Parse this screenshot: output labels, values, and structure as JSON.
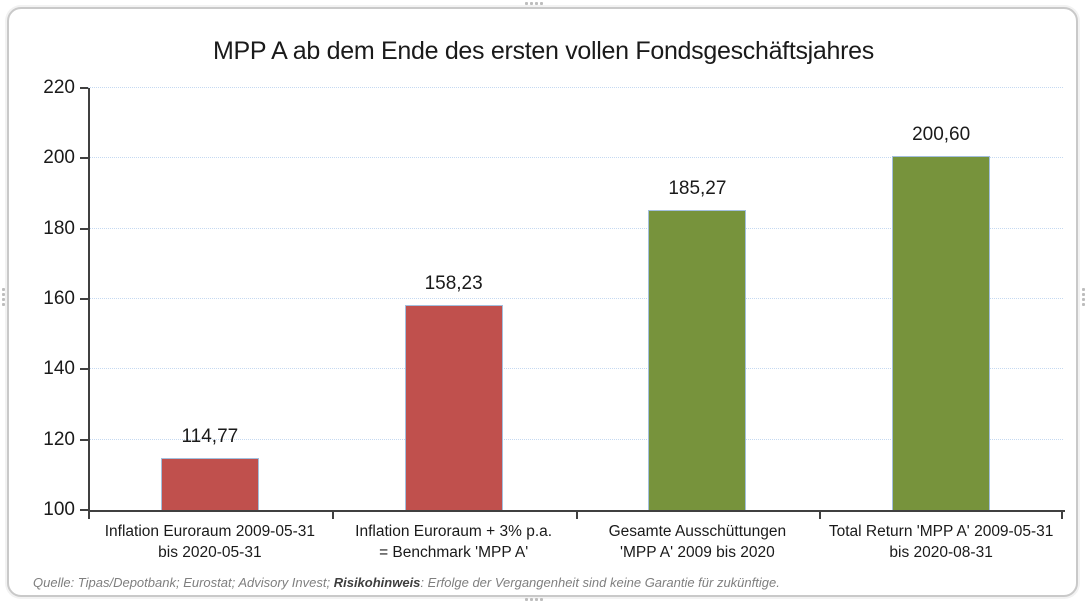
{
  "frame": {
    "border_color": "#c9c9c9"
  },
  "chart_data": {
    "type": "bar",
    "title": "MPP A ab dem Ende des ersten vollen Fondsgeschäftsjahres",
    "categories": [
      [
        "Inflation Euroraum 2009-05-31",
        "bis 2020-05-31"
      ],
      [
        "Inflation Euroraum + 3% p.a.",
        "= Benchmark 'MPP A'"
      ],
      [
        "Gesamte Ausschüttungen",
        "'MPP A' 2009 bis 2020"
      ],
      [
        "Total Return 'MPP A' 2009-05-31",
        "bis 2020-08-31"
      ]
    ],
    "values": [
      114.77,
      158.23,
      185.27,
      200.6
    ],
    "value_labels": [
      "114,77",
      "158,23",
      "185,27",
      "200,60"
    ],
    "bar_colors": [
      "#c0504d",
      "#c0504d",
      "#77933c",
      "#77933c"
    ],
    "bar_border_color": "#a3bfdd",
    "ylim": [
      100,
      220
    ],
    "yticks": [
      100,
      120,
      140,
      160,
      180,
      200,
      220
    ],
    "grid": "horizontal-dotted",
    "gridline_color": "#c5d9f1",
    "axis_color": "#404040",
    "legend": "none",
    "xlabel": "",
    "ylabel": ""
  },
  "footer": {
    "prefix": "Quelle: Tipas/Depotbank; Eurostat; Advisory Invest; ",
    "bold": "Risikohinweis",
    "suffix": ": Erfolge der Vergangenheit sind keine Garantie für zukünftige."
  }
}
